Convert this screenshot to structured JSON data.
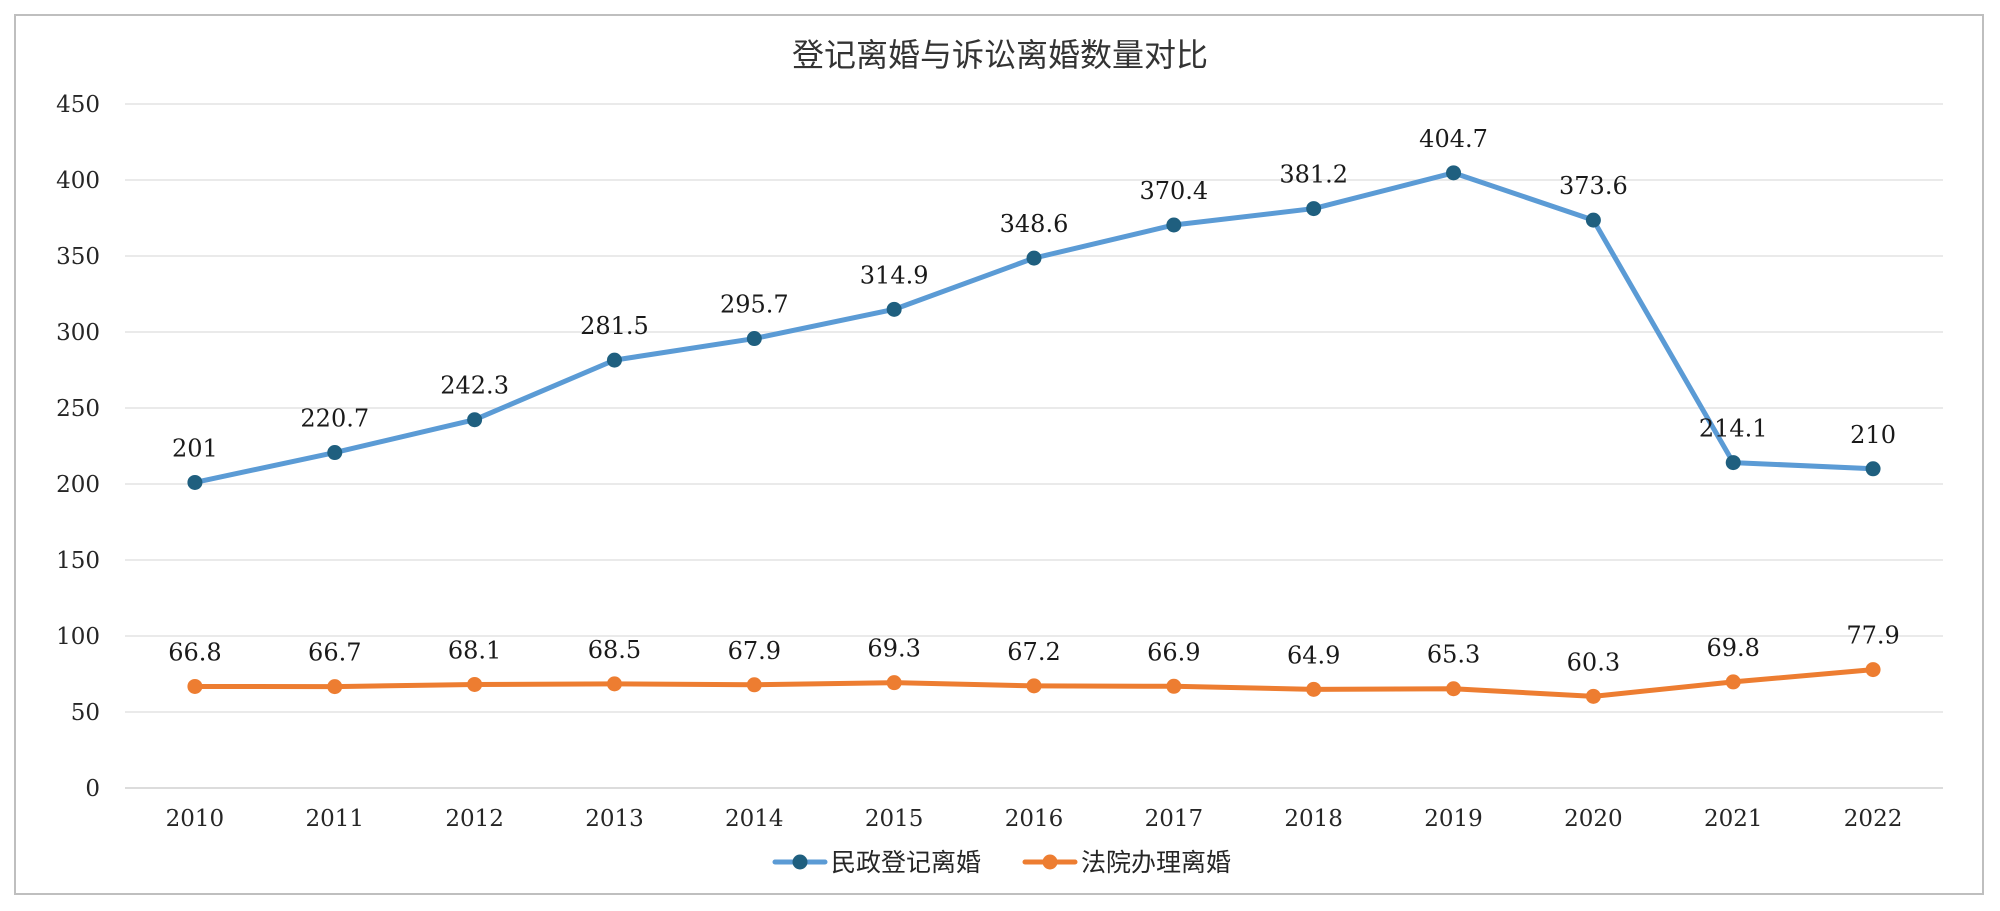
{
  "chart_data": {
    "type": "line",
    "title": "登记离婚与诉讼离婚数量对比",
    "xlabel": "",
    "ylabel": "",
    "ylim": [
      0,
      450
    ],
    "yticks": [
      "0",
      "50",
      "100",
      "150",
      "200",
      "250",
      "300",
      "350",
      "400",
      "450"
    ],
    "categories": [
      "2010",
      "2011",
      "2012",
      "2013",
      "2014",
      "2015",
      "2016",
      "2017",
      "2018",
      "2019",
      "2020",
      "2021",
      "2022"
    ],
    "grid": true,
    "legend_position": "bottom",
    "series": [
      {
        "name": "民政登记离婚",
        "color": "#5b9bd5",
        "marker_color": "#1f5f7f",
        "values": [
          201,
          220.7,
          242.3,
          281.5,
          295.7,
          314.9,
          348.6,
          370.4,
          381.2,
          404.7,
          373.6,
          214.1,
          210
        ],
        "labels": [
          "201",
          "220.7",
          "242.3",
          "281.5",
          "295.7",
          "314.9",
          "348.6",
          "370.4",
          "381.2",
          "404.7",
          "373.6",
          "214.1",
          "210"
        ]
      },
      {
        "name": "法院办理离婚",
        "color": "#ed7d31",
        "marker_color": "#ed7d31",
        "values": [
          66.8,
          66.7,
          68.1,
          68.5,
          67.9,
          69.3,
          67.2,
          66.9,
          64.9,
          65.3,
          60.3,
          69.8,
          77.9
        ],
        "labels": [
          "66.8",
          "66.7",
          "68.1",
          "68.5",
          "67.9",
          "69.3",
          "67.2",
          "66.9",
          "64.9",
          "65.3",
          "60.3",
          "69.8",
          "77.9"
        ]
      }
    ]
  }
}
